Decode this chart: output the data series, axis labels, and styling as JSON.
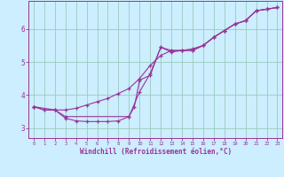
{
  "background_color": "#cceeff",
  "grid_color": "#99ccbb",
  "line_color": "#993399",
  "marker_color": "#993399",
  "xlabel": "Windchill (Refroidissement éolien,°C)",
  "xlim": [
    -0.5,
    23.5
  ],
  "ylim": [
    2.7,
    6.85
  ],
  "yticks": [
    3,
    4,
    5,
    6
  ],
  "xticks": [
    0,
    1,
    2,
    3,
    4,
    5,
    6,
    7,
    8,
    9,
    10,
    11,
    12,
    13,
    14,
    15,
    16,
    17,
    18,
    19,
    20,
    21,
    22,
    23
  ],
  "series1": [
    [
      0,
      3.65
    ],
    [
      1,
      3.55
    ],
    [
      2,
      3.55
    ],
    [
      3,
      3.3
    ],
    [
      4,
      3.22
    ],
    [
      5,
      3.2
    ],
    [
      6,
      3.2
    ],
    [
      7,
      3.2
    ],
    [
      8,
      3.22
    ],
    [
      9,
      3.35
    ],
    [
      9.5,
      3.65
    ],
    [
      10,
      4.45
    ],
    [
      11,
      4.6
    ],
    [
      12,
      5.45
    ],
    [
      13,
      5.3
    ],
    [
      14,
      5.35
    ],
    [
      15,
      5.35
    ],
    [
      16,
      5.5
    ],
    [
      17,
      5.75
    ],
    [
      18,
      5.95
    ],
    [
      19,
      6.15
    ],
    [
      20,
      6.25
    ],
    [
      21,
      6.55
    ],
    [
      22,
      6.6
    ],
    [
      23,
      6.65
    ]
  ],
  "series2": [
    [
      0,
      3.65
    ],
    [
      1,
      3.55
    ],
    [
      2,
      3.55
    ],
    [
      3,
      3.55
    ],
    [
      4,
      3.6
    ],
    [
      5,
      3.7
    ],
    [
      6,
      3.8
    ],
    [
      7,
      3.9
    ],
    [
      8,
      4.05
    ],
    [
      9,
      4.2
    ],
    [
      10,
      4.5
    ],
    [
      11,
      4.9
    ],
    [
      12,
      5.2
    ],
    [
      13,
      5.35
    ],
    [
      14,
      5.35
    ],
    [
      15,
      5.4
    ],
    [
      16,
      5.5
    ],
    [
      17,
      5.75
    ],
    [
      18,
      5.95
    ],
    [
      19,
      6.15
    ],
    [
      20,
      6.25
    ],
    [
      21,
      6.55
    ],
    [
      22,
      6.6
    ],
    [
      23,
      6.65
    ]
  ],
  "series3": [
    [
      0,
      3.65
    ],
    [
      2,
      3.55
    ],
    [
      3,
      3.35
    ],
    [
      9,
      3.35
    ],
    [
      10,
      4.1
    ],
    [
      11,
      4.65
    ],
    [
      12,
      5.45
    ],
    [
      13,
      5.35
    ],
    [
      14,
      5.35
    ],
    [
      15,
      5.35
    ],
    [
      16,
      5.5
    ],
    [
      17,
      5.75
    ],
    [
      18,
      5.95
    ],
    [
      19,
      6.15
    ],
    [
      20,
      6.25
    ],
    [
      21,
      6.55
    ],
    [
      22,
      6.6
    ],
    [
      23,
      6.65
    ]
  ]
}
